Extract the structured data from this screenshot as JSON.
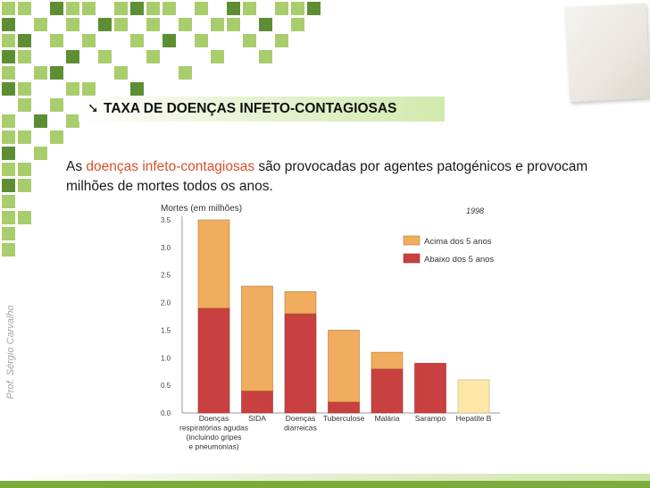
{
  "slide": {
    "title": "TAXA DE DOENÇAS INFETO-CONTAGIOSAS",
    "intro_before": "As ",
    "intro_highlight": "doenças infeto-contagiosas",
    "intro_after": " são provocadas por agentes patogénicos e provocam milhões de mortes todos os anos.",
    "side_credit": "Prof. Sérgio Carvalho"
  },
  "colors": {
    "accent": "#d9502b",
    "green": "#7bab3a",
    "above5": "#f0ad5f",
    "below5": "#c8403f",
    "single": "#fce7a6"
  },
  "chart_data": {
    "type": "bar",
    "stacked": true,
    "ylabel": "Mortes (em milhões)",
    "annotation": "1998",
    "ylim": [
      0,
      3.5
    ],
    "yticks": [
      "0.0",
      "0.5",
      "1.0",
      "1.5",
      "2.0",
      "2.5",
      "3.0",
      "3.5"
    ],
    "categories": [
      [
        "Doenças",
        "respiratórias agudas",
        "(incluindo gripes",
        "e pneumonias)"
      ],
      [
        "SIDA"
      ],
      [
        "Doenças",
        "diarreicas"
      ],
      [
        "Tuberculose"
      ],
      [
        "Malária"
      ],
      [
        "Sarampo"
      ],
      [
        "Hepatite B"
      ]
    ],
    "series": [
      {
        "name": "Abaixo dos 5 anos",
        "values": [
          1.9,
          0.4,
          1.8,
          0.2,
          0.8,
          0.9,
          0
        ]
      },
      {
        "name": "Acima dos 5 anos",
        "values": [
          1.6,
          1.9,
          0.4,
          1.3,
          0.3,
          0,
          0
        ]
      }
    ],
    "unsplit_values": [
      0,
      0,
      0,
      0,
      0,
      0,
      0.6
    ],
    "legend": [
      "Acima dos 5 anos",
      "Abaixo dos 5 anos"
    ],
    "legend_position": "top-right",
    "grid": false
  }
}
